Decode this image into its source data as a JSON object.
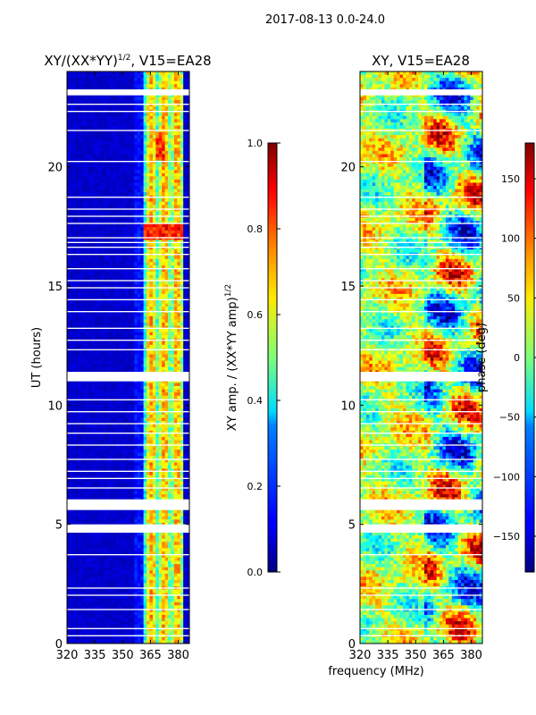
{
  "figure_title": "2017-08-13 0.0-24.0",
  "xlabel_common": "frequency (MHz)",
  "chart_data": [
    {
      "type": "heatmap",
      "title_main": "XY/(XX*YY)",
      "title_exp": "1/2",
      "title_suffix": ", V15=EA28",
      "xlabel": "",
      "ylabel": "UT (hours)",
      "xlim": [
        320,
        386
      ],
      "ylim": [
        0,
        24
      ],
      "xticks": [
        320,
        335,
        350,
        365,
        380
      ],
      "yticks": [
        0,
        5,
        10,
        15,
        20
      ],
      "colormap": "jet",
      "colorbar": {
        "label_main": "XY amp. / (XX*YY amp)",
        "label_exp": "1/2",
        "range": [
          0.0,
          1.0
        ],
        "ticks": [
          "0.0",
          "0.2",
          "0.4",
          "0.6",
          "0.8",
          "1.0"
        ],
        "tick_values": [
          0.0,
          0.2,
          0.4,
          0.6,
          0.8,
          1.0
        ]
      },
      "flagged_ut_hours": [
        [
          23.0,
          23.25
        ],
        [
          11.0,
          11.4
        ],
        [
          5.6,
          6.05
        ],
        [
          4.65,
          5.0
        ],
        [
          22.6,
          22.65
        ],
        [
          22.3,
          22.35
        ],
        [
          21.5,
          21.55
        ],
        [
          20.2,
          20.25
        ],
        [
          18.7,
          18.75
        ],
        [
          18.2,
          18.25
        ],
        [
          17.9,
          17.95
        ],
        [
          17.6,
          17.65
        ],
        [
          17.0,
          17.05
        ],
        [
          16.8,
          16.85
        ],
        [
          16.6,
          16.65
        ],
        [
          16.3,
          16.35
        ],
        [
          15.7,
          15.75
        ],
        [
          15.2,
          15.25
        ],
        [
          14.9,
          14.95
        ],
        [
          14.4,
          14.45
        ],
        [
          13.9,
          13.95
        ],
        [
          13.2,
          13.25
        ],
        [
          12.7,
          12.75
        ],
        [
          12.3,
          12.35
        ],
        [
          10.2,
          10.25
        ],
        [
          9.7,
          9.75
        ],
        [
          9.2,
          9.25
        ],
        [
          8.8,
          8.85
        ],
        [
          8.3,
          8.35
        ],
        [
          7.7,
          7.75
        ],
        [
          7.2,
          7.25
        ],
        [
          6.9,
          6.95
        ],
        [
          6.5,
          6.55
        ],
        [
          3.7,
          3.75
        ],
        [
          2.3,
          2.35
        ],
        [
          2.0,
          2.05
        ],
        [
          1.4,
          1.45
        ],
        [
          0.6,
          0.65
        ],
        [
          0.3,
          0.35
        ]
      ]
    },
    {
      "type": "heatmap",
      "title": "XY, V15=EA28",
      "xlabel": "",
      "ylabel": "",
      "xlim": [
        320,
        386
      ],
      "ylim": [
        0,
        24
      ],
      "xticks": [
        320,
        335,
        350,
        365,
        380
      ],
      "yticks": [
        0,
        5,
        10,
        15,
        20
      ],
      "colormap": "jet",
      "colorbar": {
        "label": "phase (deg)",
        "range": [
          -180,
          180
        ],
        "ticks": [
          "−150",
          "−100",
          "−50",
          "0",
          "50",
          "100",
          "150"
        ],
        "tick_values": [
          -150,
          -100,
          -50,
          0,
          50,
          100,
          150
        ]
      },
      "flagged_ut_hours": [
        [
          23.0,
          23.25
        ],
        [
          11.0,
          11.4
        ],
        [
          5.6,
          6.05
        ],
        [
          4.65,
          5.0
        ],
        [
          22.6,
          22.65
        ],
        [
          22.3,
          22.35
        ],
        [
          21.5,
          21.55
        ],
        [
          20.2,
          20.25
        ],
        [
          18.7,
          18.75
        ],
        [
          18.2,
          18.25
        ],
        [
          17.9,
          17.95
        ],
        [
          17.6,
          17.65
        ],
        [
          17.0,
          17.05
        ],
        [
          16.8,
          16.85
        ],
        [
          16.6,
          16.65
        ],
        [
          16.3,
          16.35
        ],
        [
          15.7,
          15.75
        ],
        [
          15.2,
          15.25
        ],
        [
          14.9,
          14.95
        ],
        [
          14.4,
          14.45
        ],
        [
          13.9,
          13.95
        ],
        [
          13.2,
          13.25
        ],
        [
          12.7,
          12.75
        ],
        [
          12.3,
          12.35
        ],
        [
          10.2,
          10.25
        ],
        [
          9.7,
          9.75
        ],
        [
          9.2,
          9.25
        ],
        [
          8.8,
          8.85
        ],
        [
          8.3,
          8.35
        ],
        [
          7.7,
          7.75
        ],
        [
          7.2,
          7.25
        ],
        [
          6.9,
          6.95
        ],
        [
          6.5,
          6.55
        ],
        [
          3.7,
          3.75
        ],
        [
          2.3,
          2.35
        ],
        [
          2.0,
          2.05
        ],
        [
          1.4,
          1.45
        ],
        [
          0.6,
          0.65
        ],
        [
          0.3,
          0.35
        ]
      ]
    }
  ]
}
